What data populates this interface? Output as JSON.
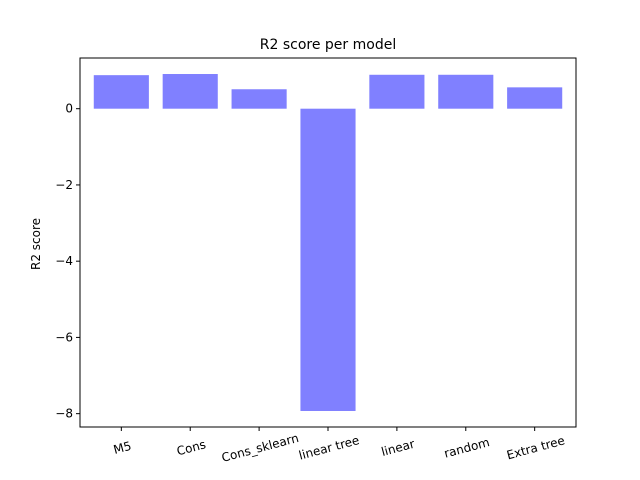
{
  "chart_data": {
    "type": "bar",
    "title": "R2 score per model",
    "xlabel": "",
    "ylabel": "R2 score",
    "categories": [
      "M5",
      "Cons",
      "Cons_sklearn",
      "linear tree",
      "linear",
      "random",
      "Extra tree"
    ],
    "values": [
      0.88,
      0.91,
      0.51,
      -7.93,
      0.89,
      0.89,
      0.56
    ],
    "ylim": [
      -8.35,
      1.33
    ],
    "yticks": [
      0,
      -2,
      -4,
      -6,
      -8
    ],
    "ytick_labels": [
      "0",
      "−2",
      "−4",
      "−6",
      "−8"
    ],
    "bar_color": "#8080ff",
    "grid": false,
    "legend": "none",
    "xtick_rotation_deg": 15
  }
}
